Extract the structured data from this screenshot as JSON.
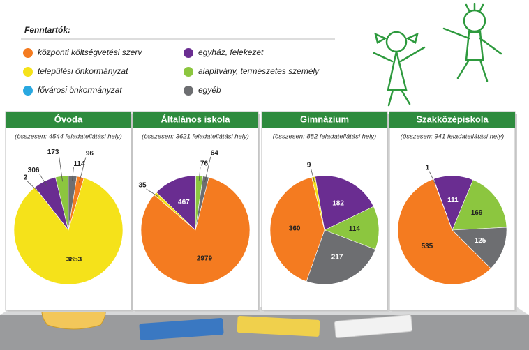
{
  "legend": {
    "title": "Fenntartók:",
    "items": [
      {
        "name": "központi költségvetési szerv",
        "color": "#f47b20"
      },
      {
        "name": "települési önkormányzat",
        "color": "#f5e21a"
      },
      {
        "name": "fővárosi önkormányzat",
        "color": "#29a8e0"
      },
      {
        "name": "egyház, felekezet",
        "color": "#6a2d91"
      },
      {
        "name": "alapítvány, természetes személy",
        "color": "#8cc63f"
      },
      {
        "name": "egyéb",
        "color": "#6d6e71"
      }
    ]
  },
  "chart_data": [
    {
      "type": "pie",
      "title": "Óvoda",
      "subtitle": "(összesen: 4544 feladatellátási hely)",
      "values": [
        96,
        3853,
        2,
        306,
        173,
        114
      ]
    },
    {
      "type": "pie",
      "title": "Általános iskola",
      "subtitle": "(összesen: 3621 feladatellátási hely)",
      "values": [
        2979,
        35,
        null,
        467,
        76,
        64
      ]
    },
    {
      "type": "pie",
      "title": "Gimnázium",
      "subtitle": "(összesen: 882 feladatellátási hely)",
      "values": [
        360,
        9,
        null,
        182,
        114,
        217
      ]
    },
    {
      "type": "pie",
      "title": "Szakközépiskola",
      "subtitle": "(összesen: 941 feladatellátási hely)",
      "values": [
        535,
        1,
        null,
        111,
        169,
        125
      ]
    }
  ]
}
